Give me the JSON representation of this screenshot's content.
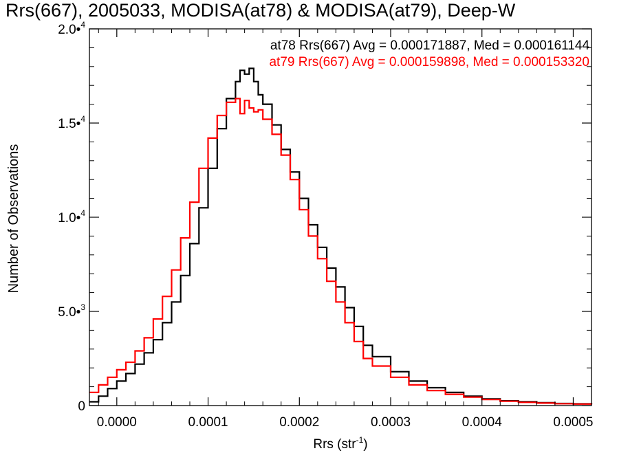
{
  "chart_data": {
    "type": "line",
    "title": "Rrs(667), 2005033, MODISA(at78) & MODISA(at79), Deep-W",
    "xlabel": "Rrs (str",
    "xlabel_sup": "-1",
    "xlabel_close": ")",
    "ylabel": "Number of Observations",
    "xlim": [
      -3e-05,
      0.00052
    ],
    "ylim": [
      0,
      20000
    ],
    "x_ticks": [
      {
        "value": 0.0,
        "label": "0.0000"
      },
      {
        "value": 0.0001,
        "label": "0.0001"
      },
      {
        "value": 0.0002,
        "label": "0.0002"
      },
      {
        "value": 0.0003,
        "label": "0.0003"
      },
      {
        "value": 0.0004,
        "label": "0.0004"
      },
      {
        "value": 0.0005,
        "label": "0.0005"
      }
    ],
    "y_ticks": [
      {
        "value": 0,
        "mant": "0",
        "exp": ""
      },
      {
        "value": 5000,
        "mant": "5.0•",
        "exp": "3"
      },
      {
        "value": 10000,
        "mant": "1.0•",
        "exp": "4"
      },
      {
        "value": 15000,
        "mant": "1.5•",
        "exp": "4"
      },
      {
        "value": 20000,
        "mant": "2.0•",
        "exp": "4"
      }
    ],
    "grid": false,
    "legend_placement": "top-right",
    "series": [
      {
        "name": "at78",
        "color": "#000000",
        "annotation": "at78 Rrs(667) Avg = 0.000171887, Med = 0.000161144",
        "x": [
          -3e-05,
          -2e-05,
          -1e-05,
          0.0,
          1e-05,
          2e-05,
          3e-05,
          4e-05,
          5e-05,
          6e-05,
          7e-05,
          8e-05,
          9e-05,
          0.0001,
          0.00011,
          0.00012,
          0.00013,
          0.000135,
          0.00014,
          0.000145,
          0.00015,
          0.000155,
          0.00016,
          0.00017,
          0.00018,
          0.00019,
          0.0002,
          0.00021,
          0.00022,
          0.00023,
          0.00024,
          0.00025,
          0.00026,
          0.00027,
          0.00028,
          0.0003,
          0.00032,
          0.00034,
          0.00036,
          0.00038,
          0.0004,
          0.00042,
          0.00044,
          0.00046,
          0.00048,
          0.0005,
          0.00052
        ],
        "y": [
          200,
          500,
          900,
          1300,
          1700,
          2200,
          2800,
          3500,
          4400,
          5500,
          6900,
          8600,
          10500,
          12600,
          14700,
          16300,
          17200,
          17800,
          17600,
          17900,
          17200,
          16500,
          16000,
          14900,
          13600,
          12400,
          11000,
          9600,
          8400,
          7300,
          6300,
          5200,
          4200,
          3200,
          2600,
          1800,
          1300,
          950,
          700,
          500,
          350,
          250,
          200,
          150,
          110,
          90,
          70
        ]
      },
      {
        "name": "at79",
        "color": "#ff0000",
        "annotation": "at79 Rrs(667) Avg = 0.000159898, Med = 0.000153320",
        "x": [
          -3e-05,
          -2e-05,
          -1e-05,
          0.0,
          1e-05,
          2e-05,
          3e-05,
          4e-05,
          5e-05,
          6e-05,
          7e-05,
          8e-05,
          9e-05,
          0.0001,
          0.00011,
          0.00012,
          0.00013,
          0.000135,
          0.00014,
          0.000145,
          0.00015,
          0.000155,
          0.00016,
          0.00017,
          0.00018,
          0.00019,
          0.0002,
          0.00021,
          0.00022,
          0.00023,
          0.00024,
          0.00025,
          0.00026,
          0.00027,
          0.00028,
          0.0003,
          0.00032,
          0.00034,
          0.00036,
          0.00038,
          0.0004,
          0.00042,
          0.00044,
          0.00046,
          0.00048,
          0.0005,
          0.00052
        ],
        "y": [
          700,
          1100,
          1500,
          1900,
          2300,
          2900,
          3600,
          4600,
          5800,
          7200,
          8900,
          10800,
          12600,
          14200,
          15400,
          16100,
          16300,
          15500,
          16200,
          15800,
          15600,
          15700,
          15200,
          14400,
          13300,
          12000,
          10400,
          9000,
          7800,
          6600,
          5500,
          4400,
          3400,
          2500,
          2100,
          1500,
          1100,
          800,
          600,
          450,
          320,
          230,
          170,
          130,
          100,
          80,
          60
        ]
      }
    ]
  }
}
